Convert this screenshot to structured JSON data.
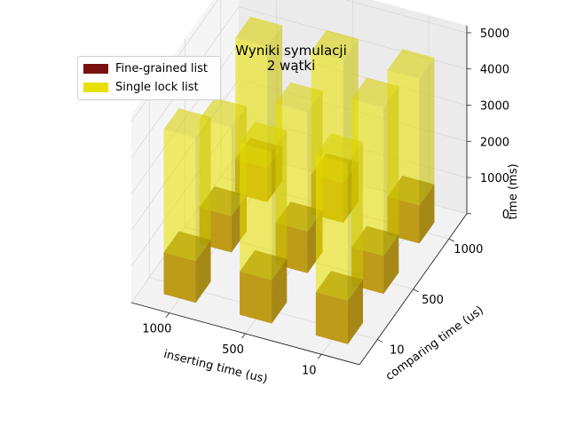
{
  "chart_data": {
    "type": "bar3d",
    "title": "Wyniki symulacji",
    "subtitle": "2 wątki",
    "xlabel": "inserting time (us)",
    "ylabel": "comparing time (us)",
    "zlabel": "time (ms)",
    "x_categories": [
      "1000",
      "500",
      "10"
    ],
    "y_categories": [
      "10",
      "500",
      "1000"
    ],
    "z_ticks": [
      "0",
      "1000",
      "2000",
      "3000",
      "4000",
      "5000"
    ],
    "zlim": [
      0,
      5200
    ],
    "legend_position": "top-left",
    "series": [
      {
        "name": "Fine-grained list",
        "color": "#7a1010",
        "values": [
          [
            1150,
            1000,
            950
          ],
          [
            1200,
            1150,
            1100
          ],
          [
            1200,
            1050,
            1050
          ]
        ]
      },
      {
        "name": "Single lock list",
        "color": "#e8e000",
        "values": [
          [
            4550,
            3450,
            4300
          ],
          [
            4750,
            4450,
            4500
          ],
          [
            5000,
            5150,
            4550
          ]
        ]
      }
    ]
  },
  "legend": {
    "items": [
      {
        "label": "Fine-grained list",
        "color": "#7a1010"
      },
      {
        "label": "Single lock list",
        "color": "#e8e000"
      }
    ]
  }
}
